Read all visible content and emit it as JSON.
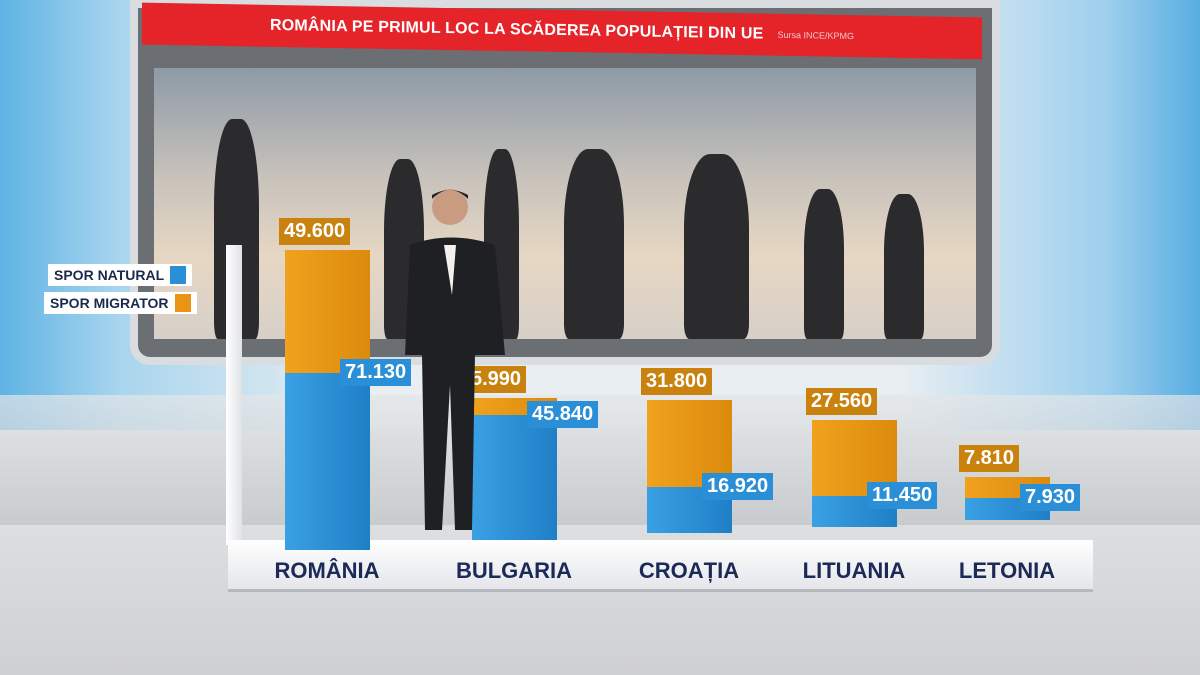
{
  "header": {
    "title": "ROMÂNIA PE PRIMUL LOC LA SCĂDEREA POPULAȚIEI DIN UE",
    "source": "Sursa INCE/KPMG"
  },
  "colors": {
    "natural": "#2a8fd6",
    "migrator": "#e99412",
    "banner": "#e5242a"
  },
  "chart_data": {
    "type": "bar",
    "stacked": true,
    "categories": [
      "ROMÂNIA",
      "BULGARIA",
      "CROAȚIA",
      "LITUANIA",
      "LETONIA"
    ],
    "series": [
      {
        "name": "SPOR NATURAL",
        "values": [
          71130,
          45840,
          16920,
          11450,
          7930
        ],
        "labels": [
          "71.130",
          "45.840",
          "16.920",
          "11.450",
          "7.930"
        ]
      },
      {
        "name": "SPOR MIGRATOR",
        "values": [
          49600,
          5990,
          31800,
          27560,
          7810
        ],
        "labels": [
          "49.600",
          "5.990",
          "31.800",
          "27.560",
          "7.810"
        ]
      }
    ],
    "legend": "left"
  }
}
